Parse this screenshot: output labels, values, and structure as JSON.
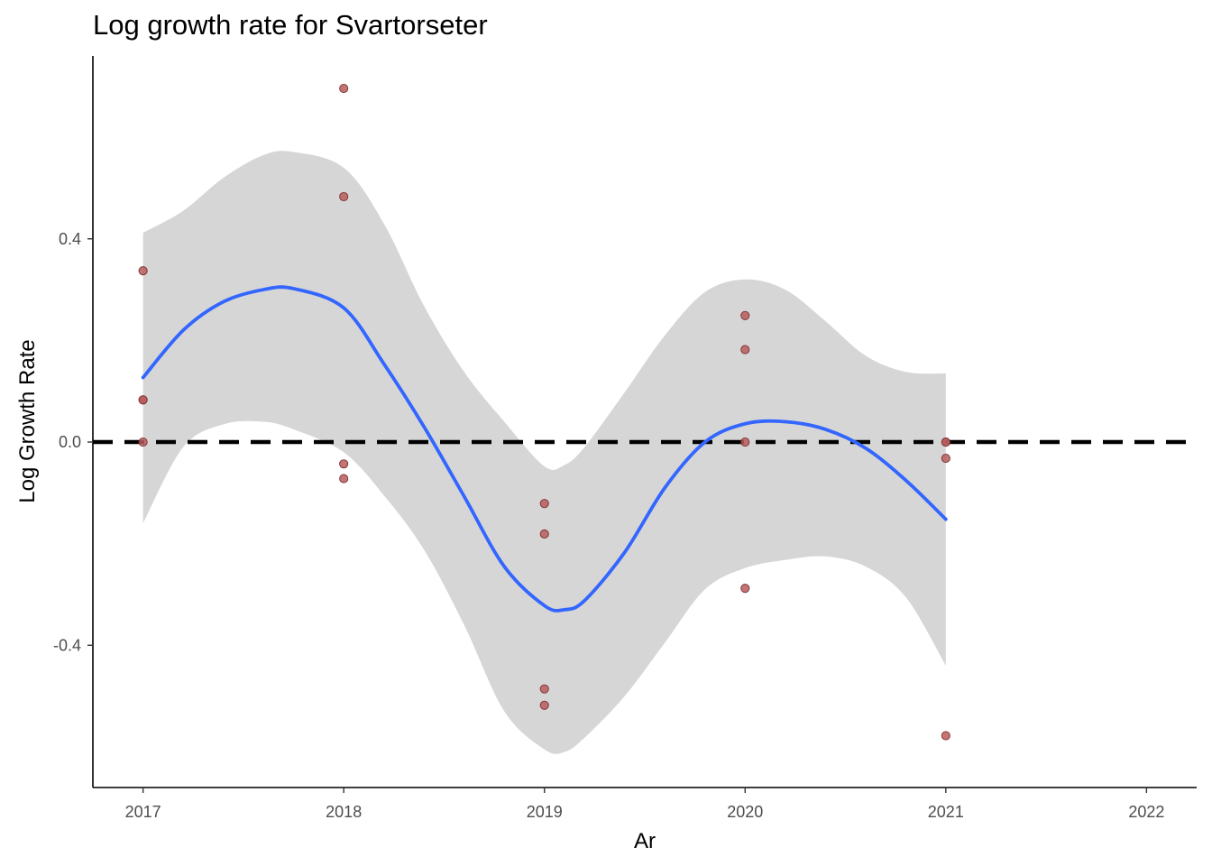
{
  "chart_data": {
    "type": "scatter",
    "title": "Log growth rate for Svartorseter",
    "xlabel": "Ar",
    "ylabel": "Log Growth Rate",
    "xlim": [
      2016.75,
      2022.25
    ],
    "ylim": [
      -0.68,
      0.76
    ],
    "x_ticks": [
      2017,
      2018,
      2019,
      2020,
      2021,
      2022
    ],
    "x_tick_labels": [
      "2017",
      "2018",
      "2019",
      "2020",
      "2021",
      "2022"
    ],
    "y_ticks": [
      -0.4,
      0.0,
      0.4
    ],
    "y_tick_labels": [
      "-0.4",
      "0.0",
      "0.4"
    ],
    "grid": false,
    "reference_line": {
      "y": 0,
      "style": "dashed",
      "color": "#000000"
    },
    "colors": {
      "points_fill": "#b85c5c",
      "points_stroke": "#7a3030",
      "smooth_line": "#3366ff",
      "confidence_band": "#d6d6d6"
    },
    "points": [
      {
        "x": 2017,
        "y": 0.337
      },
      {
        "x": 2017,
        "y": 0.083
      },
      {
        "x": 2017,
        "y": 0.083
      },
      {
        "x": 2017,
        "y": 0.0
      },
      {
        "x": 2018,
        "y": 0.696
      },
      {
        "x": 2018,
        "y": 0.483
      },
      {
        "x": 2018,
        "y": -0.043
      },
      {
        "x": 2018,
        "y": -0.072
      },
      {
        "x": 2019,
        "y": -0.121
      },
      {
        "x": 2019,
        "y": -0.181
      },
      {
        "x": 2019,
        "y": -0.486
      },
      {
        "x": 2019,
        "y": -0.518
      },
      {
        "x": 2020,
        "y": 0.249
      },
      {
        "x": 2020,
        "y": 0.182
      },
      {
        "x": 2020,
        "y": 0.0
      },
      {
        "x": 2020,
        "y": -0.288
      },
      {
        "x": 2021,
        "y": 0.0
      },
      {
        "x": 2021,
        "y": 0.0
      },
      {
        "x": 2021,
        "y": -0.032
      },
      {
        "x": 2021,
        "y": -0.578
      }
    ],
    "smooth": {
      "x": [
        2017.0,
        2017.2,
        2017.4,
        2017.6,
        2017.75,
        2018.0,
        2018.2,
        2018.4,
        2018.6,
        2018.8,
        2019.0,
        2019.1,
        2019.2,
        2019.4,
        2019.6,
        2019.8,
        2020.0,
        2020.2,
        2020.4,
        2020.6,
        2020.8,
        2021.0
      ],
      "y": [
        0.127,
        0.22,
        0.276,
        0.3,
        0.302,
        0.264,
        0.154,
        0.03,
        -0.107,
        -0.245,
        -0.322,
        -0.33,
        -0.312,
        -0.217,
        -0.09,
        0.0,
        0.036,
        0.04,
        0.025,
        -0.012,
        -0.075,
        -0.152
      ],
      "upper": [
        0.412,
        0.455,
        0.52,
        0.565,
        0.571,
        0.54,
        0.43,
        0.268,
        0.138,
        0.04,
        -0.048,
        -0.045,
        -0.01,
        0.098,
        0.21,
        0.295,
        0.32,
        0.3,
        0.238,
        0.17,
        0.138,
        0.135
      ],
      "lower": [
        -0.16,
        -0.01,
        0.035,
        0.04,
        0.025,
        -0.02,
        -0.105,
        -0.212,
        -0.36,
        -0.53,
        -0.605,
        -0.61,
        -0.582,
        -0.5,
        -0.395,
        -0.29,
        -0.248,
        -0.232,
        -0.225,
        -0.245,
        -0.305,
        -0.44
      ]
    }
  }
}
